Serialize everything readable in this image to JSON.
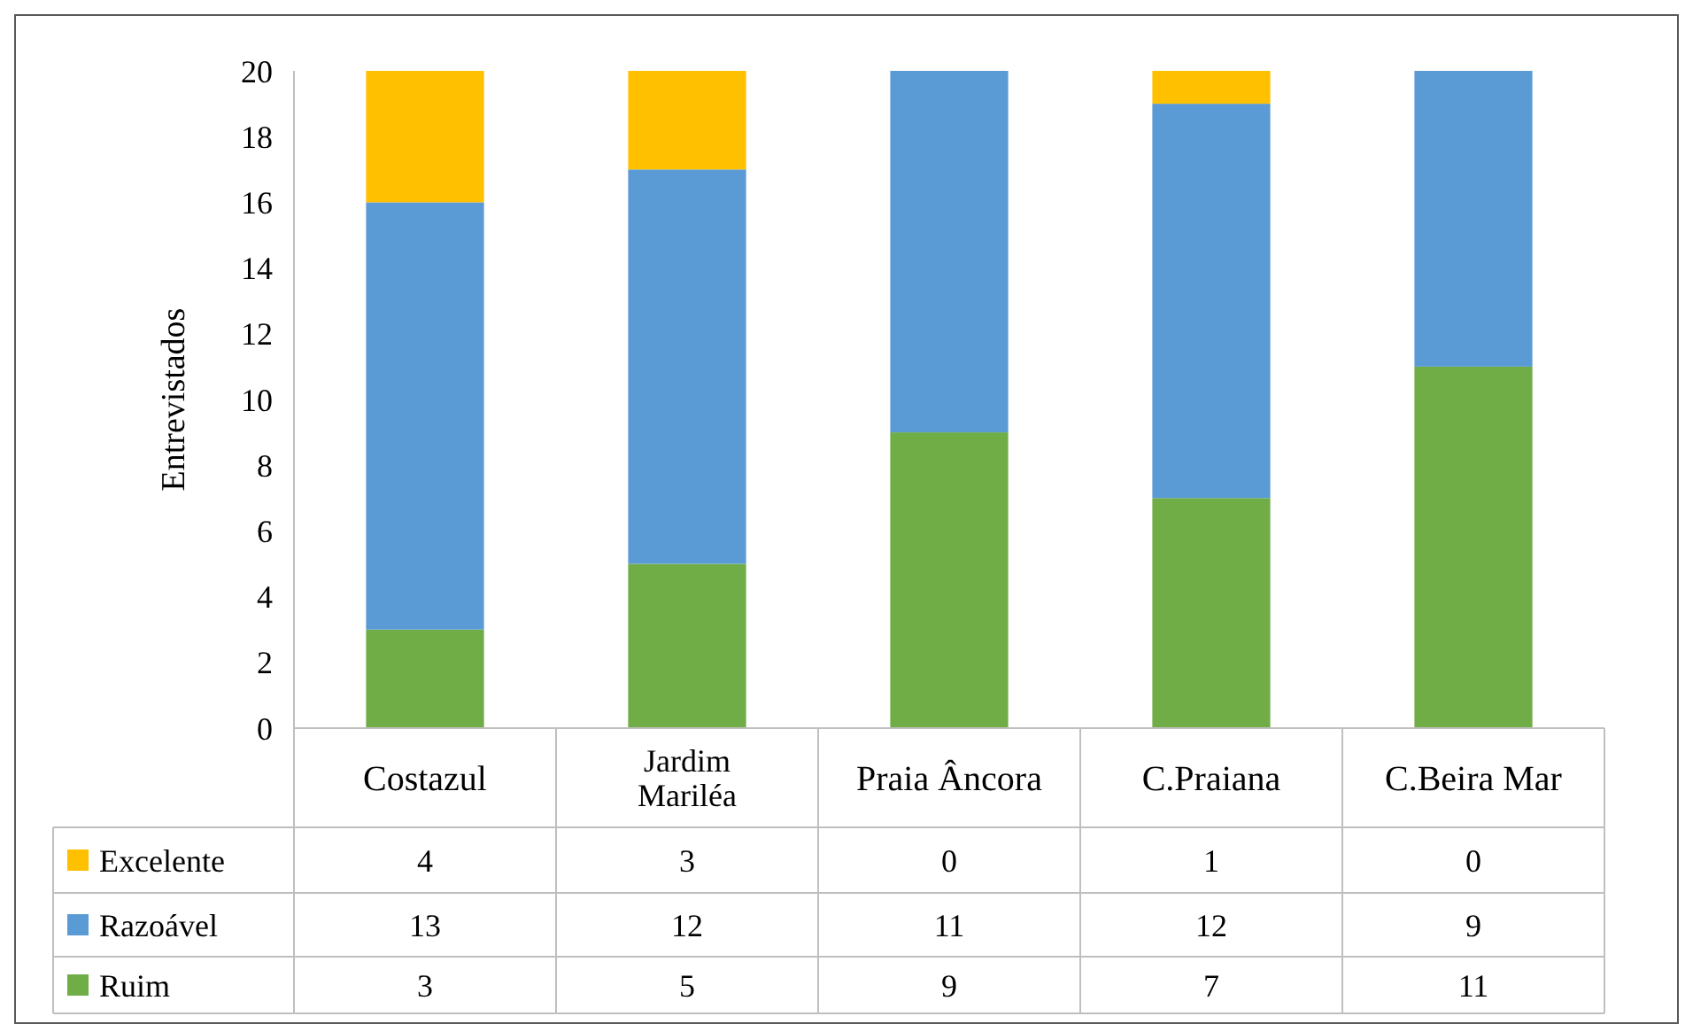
{
  "chart_data": {
    "type": "bar",
    "stacked": true,
    "ylabel": "Entrevistados",
    "categories": [
      "Costazul",
      "Jardim Mariléa",
      "Praia Âncora",
      "C.Praiana",
      "C.Beira Mar"
    ],
    "series": [
      {
        "name": "Ruim",
        "color": "#70ad47",
        "values": [
          3,
          5,
          9,
          7,
          11
        ]
      },
      {
        "name": "Razoável",
        "color": "#5b9bd5",
        "values": [
          13,
          12,
          11,
          12,
          9
        ]
      },
      {
        "name": "Excelente",
        "color": "#ffc000",
        "values": [
          4,
          3,
          0,
          1,
          0
        ]
      }
    ],
    "ylim": [
      0,
      20
    ],
    "yticks": [
      0,
      2,
      4,
      6,
      8,
      10,
      12,
      14,
      16,
      18,
      20
    ],
    "grid": false,
    "legend": "bottom",
    "data_labels": true
  }
}
